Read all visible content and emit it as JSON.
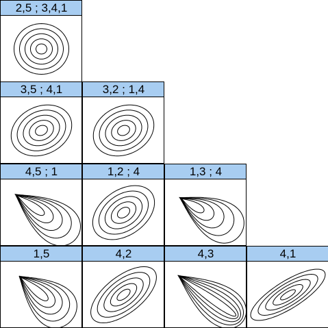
{
  "rows": [
    [
      "2,5 ; 3,4,1"
    ],
    [
      "3,5 ; 4,1",
      "3,2 ; 1,4"
    ],
    [
      "4,5 ; 1",
      "1,2 ; 4",
      "1,3 ; 4"
    ],
    [
      "1,5",
      "4,2",
      "4,3",
      "4,1"
    ]
  ]
}
